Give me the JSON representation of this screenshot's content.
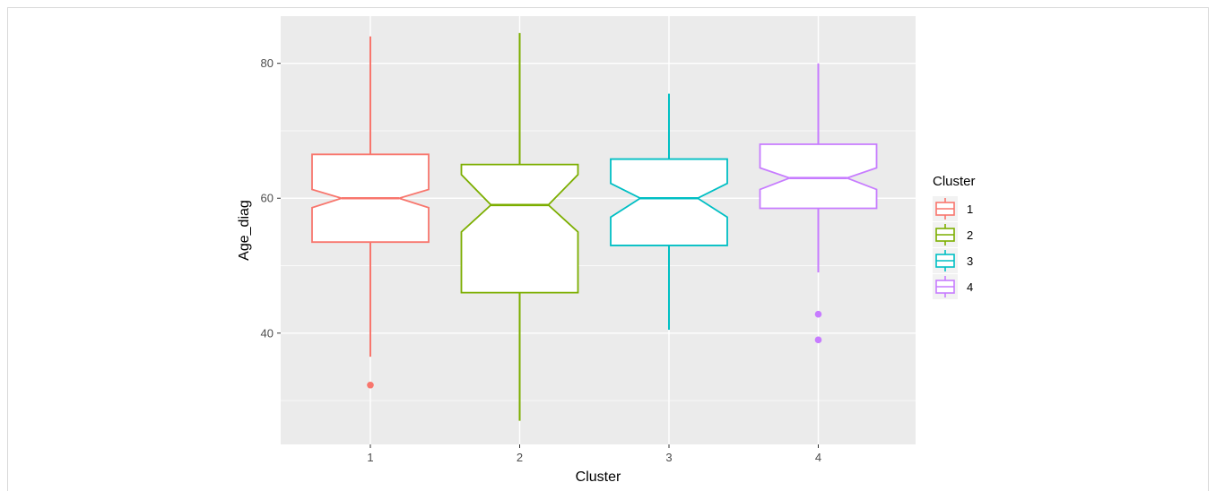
{
  "chart_data": {
    "type": "boxplot",
    "notched": true,
    "xlabel": "Cluster",
    "ylabel": "Age_diag",
    "categories": [
      "1",
      "2",
      "3",
      "4"
    ],
    "ylim": [
      23.5,
      87
    ],
    "yticks": [
      40,
      60,
      80
    ],
    "grid": true,
    "legend": {
      "title": "Cluster",
      "placement": "right",
      "labels": [
        "1",
        "2",
        "3",
        "4"
      ]
    },
    "colors": [
      "#F8766D",
      "#7CAE00",
      "#00BFC4",
      "#C77CFF"
    ],
    "boxes": [
      {
        "category": "1",
        "whisker_low": 36.5,
        "q1": 53.5,
        "median": 60,
        "q3": 66.5,
        "whisker_high": 84,
        "notch_low": 58.6,
        "notch_high": 61.3,
        "outliers": [
          32.3
        ]
      },
      {
        "category": "2",
        "whisker_low": 27,
        "q1": 46,
        "median": 59,
        "q3": 65,
        "whisker_high": 84.5,
        "notch_low": 55,
        "notch_high": 63.5,
        "outliers": []
      },
      {
        "category": "3",
        "whisker_low": 40.5,
        "q1": 53,
        "median": 60,
        "q3": 65.8,
        "whisker_high": 75.5,
        "notch_low": 57.2,
        "notch_high": 62.2,
        "outliers": []
      },
      {
        "category": "4",
        "whisker_low": 49,
        "q1": 58.5,
        "median": 63,
        "q3": 68,
        "whisker_high": 80,
        "notch_low": 61.3,
        "notch_high": 64.5,
        "outliers": [
          42.8,
          39
        ]
      }
    ]
  }
}
